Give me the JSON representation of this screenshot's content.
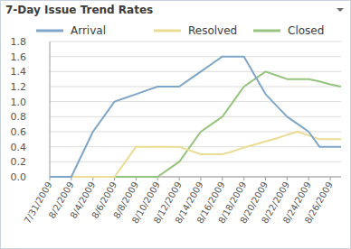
{
  "chart_data": {
    "type": "line",
    "title": "7-Day Issue Trend Rates",
    "categories": [
      "7/31/2009",
      null,
      "8/2/2009",
      null,
      "8/4/2009",
      null,
      "8/6/2009",
      null,
      "8/8/2009",
      null,
      "8/10/2009",
      null,
      "8/12/2009",
      null,
      "8/14/2009",
      null,
      "8/16/2009",
      null,
      "8/18/2009",
      null,
      "8/20/2009",
      null,
      "8/22/2009",
      null,
      "8/24/2009",
      null,
      "8/26/2009",
      null
    ],
    "series": [
      {
        "name": "Arrival",
        "color": "#7fa6c9",
        "values": [
          0,
          0,
          0,
          0.3,
          0.6,
          0.8,
          1.0,
          1.05,
          1.1,
          1.15,
          1.2,
          1.2,
          1.2,
          1.3,
          1.4,
          1.5,
          1.6,
          1.6,
          1.6,
          1.35,
          1.1,
          0.95,
          0.8,
          0.7,
          0.6,
          0.4,
          0.4,
          0.4
        ]
      },
      {
        "name": "Resolved",
        "color": "#ebdc94",
        "values": [
          0,
          0,
          0,
          0,
          0,
          0,
          0,
          0.2,
          0.4,
          0.4,
          0.4,
          0.4,
          0.4,
          0.35,
          0.3,
          0.3,
          0.3,
          0.34,
          0.39,
          0.43,
          0.47,
          0.51,
          0.56,
          0.6,
          0.55,
          0.5,
          0.5,
          0.5
        ]
      },
      {
        "name": "Closed",
        "color": "#96c47f",
        "values": [
          0,
          0,
          0,
          0,
          0,
          0,
          0,
          0,
          0,
          0,
          0,
          0.1,
          0.2,
          0.4,
          0.6,
          0.7,
          0.8,
          1.0,
          1.2,
          1.3,
          1.4,
          1.35,
          1.3,
          1.3,
          1.3,
          1.27,
          1.23,
          1.2
        ]
      }
    ],
    "ylim": [
      0,
      1.8
    ],
    "yticks": [
      {
        "value": 0,
        "label": "0.0"
      },
      0.2,
      0.4,
      0.6,
      0.8,
      {
        "value": 1,
        "label": "1.0"
      },
      1.2,
      1.4,
      1.6,
      1.8
    ],
    "grid": true,
    "legend": "top"
  }
}
